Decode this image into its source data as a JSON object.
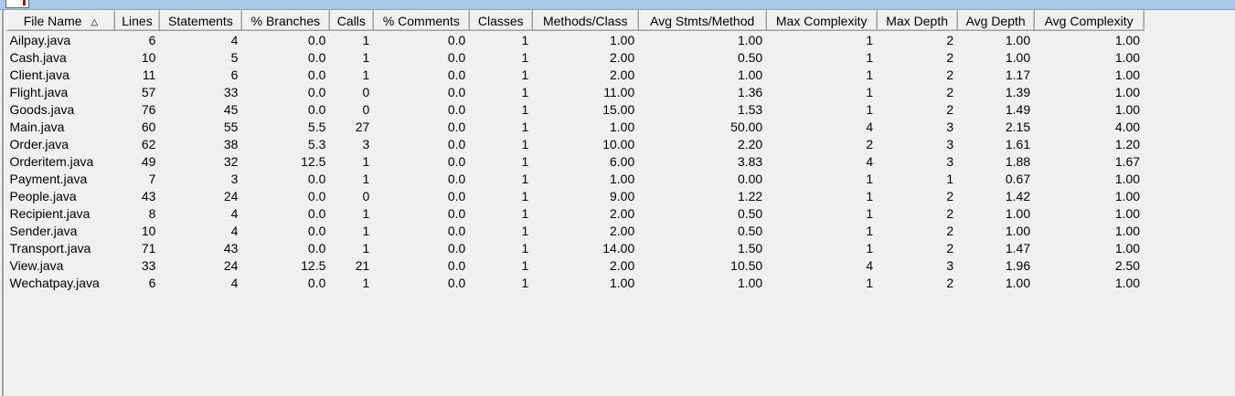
{
  "table": {
    "sort_column": "File Name",
    "sort_direction": "ascending",
    "columns": [
      "File Name",
      "Lines",
      "Statements",
      "% Branches",
      "Calls",
      "% Comments",
      "Classes",
      "Methods/Class",
      "Avg Stmts/Method",
      "Max Complexity",
      "Max Depth",
      "Avg Depth",
      "Avg Complexity"
    ],
    "rows": [
      [
        "Ailpay.java",
        "6",
        "4",
        "0.0",
        "1",
        "0.0",
        "1",
        "1.00",
        "1.00",
        "1",
        "2",
        "1.00",
        "1.00"
      ],
      [
        "Cash.java",
        "10",
        "5",
        "0.0",
        "1",
        "0.0",
        "1",
        "2.00",
        "0.50",
        "1",
        "2",
        "1.00",
        "1.00"
      ],
      [
        "Client.java",
        "11",
        "6",
        "0.0",
        "1",
        "0.0",
        "1",
        "2.00",
        "1.00",
        "1",
        "2",
        "1.17",
        "1.00"
      ],
      [
        "Flight.java",
        "57",
        "33",
        "0.0",
        "0",
        "0.0",
        "1",
        "11.00",
        "1.36",
        "1",
        "2",
        "1.39",
        "1.00"
      ],
      [
        "Goods.java",
        "76",
        "45",
        "0.0",
        "0",
        "0.0",
        "1",
        "15.00",
        "1.53",
        "1",
        "2",
        "1.49",
        "1.00"
      ],
      [
        "Main.java",
        "60",
        "55",
        "5.5",
        "27",
        "0.0",
        "1",
        "1.00",
        "50.00",
        "4",
        "3",
        "2.15",
        "4.00"
      ],
      [
        "Order.java",
        "62",
        "38",
        "5.3",
        "3",
        "0.0",
        "1",
        "10.00",
        "2.20",
        "2",
        "3",
        "1.61",
        "1.20"
      ],
      [
        "Orderitem.java",
        "49",
        "32",
        "12.5",
        "1",
        "0.0",
        "1",
        "6.00",
        "3.83",
        "4",
        "3",
        "1.88",
        "1.67"
      ],
      [
        "Payment.java",
        "7",
        "3",
        "0.0",
        "1",
        "0.0",
        "1",
        "1.00",
        "0.00",
        "1",
        "1",
        "0.67",
        "1.00"
      ],
      [
        "People.java",
        "43",
        "24",
        "0.0",
        "0",
        "0.0",
        "1",
        "9.00",
        "1.22",
        "1",
        "2",
        "1.42",
        "1.00"
      ],
      [
        "Recipient.java",
        "8",
        "4",
        "0.0",
        "1",
        "0.0",
        "1",
        "2.00",
        "0.50",
        "1",
        "2",
        "1.00",
        "1.00"
      ],
      [
        "Sender.java",
        "10",
        "4",
        "0.0",
        "1",
        "0.0",
        "1",
        "2.00",
        "0.50",
        "1",
        "2",
        "1.00",
        "1.00"
      ],
      [
        "Transport.java",
        "71",
        "43",
        "0.0",
        "1",
        "0.0",
        "1",
        "14.00",
        "1.50",
        "1",
        "2",
        "1.47",
        "1.00"
      ],
      [
        "View.java",
        "33",
        "24",
        "12.5",
        "21",
        "0.0",
        "1",
        "2.00",
        "10.50",
        "4",
        "3",
        "1.96",
        "2.50"
      ],
      [
        "Wechatpay.java",
        "6",
        "4",
        "0.0",
        "1",
        "0.0",
        "1",
        "1.00",
        "1.00",
        "1",
        "2",
        "1.00",
        "1.00"
      ]
    ]
  },
  "colors": {
    "title_bar": "#a9c8ea",
    "background": "#f0f0f0"
  },
  "icons": {
    "sort": "triangle-up-icon"
  }
}
